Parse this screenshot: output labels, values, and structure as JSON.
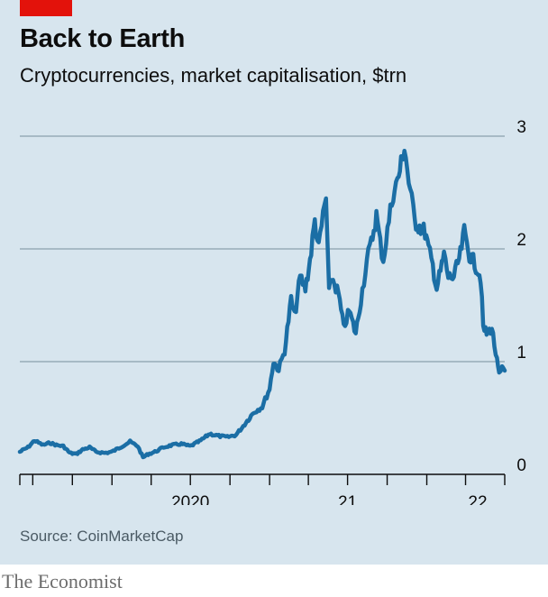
{
  "header": {
    "title": "Back to Earth",
    "subtitle": "Cryptocurrencies, market capitalisation, $trn"
  },
  "footer": {
    "source": "Source: CoinMarketCap",
    "brand": "The Economist"
  },
  "colors": {
    "background": "#d7e5ee",
    "line": "#1b6ea5",
    "accent_tag": "#e3120b",
    "grid": "#8aa0ad"
  },
  "chart_data": {
    "type": "line",
    "title": "Back to Earth",
    "subtitle": "Cryptocurrencies, market capitalisation, $trn",
    "xlabel": "",
    "ylabel": "",
    "xlim": [
      "2019-06-01",
      "2022-07-01"
    ],
    "ylim": [
      0,
      3
    ],
    "y_ticks": [
      0,
      1,
      2,
      3
    ],
    "y_tick_labels": [
      "0",
      "1",
      "2",
      "3"
    ],
    "x_tick_labels": [
      {
        "label": "2020",
        "date": "2020-01-01"
      },
      {
        "label": "21",
        "date": "2021-01-01"
      },
      {
        "label": "22",
        "date": "2022-01-01"
      }
    ],
    "grid": true,
    "y_axis_position": "right",
    "series": [
      {
        "values": [
          [
            "2019-06-01",
            0.2
          ],
          [
            "2019-06-20",
            0.24
          ],
          [
            "2019-07-05",
            0.3
          ],
          [
            "2019-07-15",
            0.28
          ],
          [
            "2019-07-25",
            0.26
          ],
          [
            "2019-08-10",
            0.28
          ],
          [
            "2019-08-25",
            0.26
          ],
          [
            "2019-09-10",
            0.25
          ],
          [
            "2019-09-25",
            0.19
          ],
          [
            "2019-10-10",
            0.18
          ],
          [
            "2019-10-25",
            0.22
          ],
          [
            "2019-11-10",
            0.24
          ],
          [
            "2019-11-25",
            0.2
          ],
          [
            "2019-12-15",
            0.19
          ],
          [
            "2020-01-01",
            0.2
          ],
          [
            "2020-01-20",
            0.24
          ],
          [
            "2020-02-12",
            0.29
          ],
          [
            "2020-03-01",
            0.25
          ],
          [
            "2020-03-13",
            0.15
          ],
          [
            "2020-03-25",
            0.18
          ],
          [
            "2020-04-10",
            0.2
          ],
          [
            "2020-04-30",
            0.24
          ],
          [
            "2020-05-20",
            0.26
          ],
          [
            "2020-06-10",
            0.27
          ],
          [
            "2020-07-01",
            0.25
          ],
          [
            "2020-07-25",
            0.3
          ],
          [
            "2020-08-15",
            0.36
          ],
          [
            "2020-09-05",
            0.34
          ],
          [
            "2020-09-25",
            0.33
          ],
          [
            "2020-10-15",
            0.35
          ],
          [
            "2020-11-01",
            0.43
          ],
          [
            "2020-11-25",
            0.55
          ],
          [
            "2020-12-15",
            0.6
          ],
          [
            "2021-01-01",
            0.76
          ],
          [
            "2021-01-10",
            1.0
          ],
          [
            "2021-01-22",
            0.93
          ],
          [
            "2021-02-05",
            1.1
          ],
          [
            "2021-02-20",
            1.55
          ],
          [
            "2021-02-28",
            1.4
          ],
          [
            "2021-03-13",
            1.75
          ],
          [
            "2021-03-25",
            1.65
          ],
          [
            "2021-04-05",
            1.9
          ],
          [
            "2021-04-16",
            2.25
          ],
          [
            "2021-04-25",
            2.0
          ],
          [
            "2021-05-05",
            2.3
          ],
          [
            "2021-05-12",
            2.45
          ],
          [
            "2021-05-19",
            1.6
          ],
          [
            "2021-05-25",
            1.75
          ],
          [
            "2021-06-10",
            1.6
          ],
          [
            "2021-06-22",
            1.3
          ],
          [
            "2021-07-05",
            1.45
          ],
          [
            "2021-07-20",
            1.25
          ],
          [
            "2021-08-01",
            1.55
          ],
          [
            "2021-08-15",
            1.9
          ],
          [
            "2021-08-25",
            2.05
          ],
          [
            "2021-09-06",
            2.3
          ],
          [
            "2021-09-15",
            2.05
          ],
          [
            "2021-09-22",
            1.9
          ],
          [
            "2021-10-05",
            2.25
          ],
          [
            "2021-10-15",
            2.5
          ],
          [
            "2021-10-25",
            2.6
          ],
          [
            "2021-11-05",
            2.8
          ],
          [
            "2021-11-10",
            2.92
          ],
          [
            "2021-11-20",
            2.6
          ],
          [
            "2021-12-04",
            2.25
          ],
          [
            "2021-12-15",
            2.2
          ],
          [
            "2021-12-28",
            2.15
          ],
          [
            "2022-01-05",
            2.0
          ],
          [
            "2022-01-15",
            1.85
          ],
          [
            "2022-01-24",
            1.65
          ],
          [
            "2022-02-05",
            1.85
          ],
          [
            "2022-02-10",
            1.95
          ],
          [
            "2022-02-20",
            1.75
          ],
          [
            "2022-03-05",
            1.75
          ],
          [
            "2022-03-20",
            1.95
          ],
          [
            "2022-03-29",
            2.15
          ],
          [
            "2022-04-10",
            1.95
          ],
          [
            "2022-04-25",
            1.85
          ],
          [
            "2022-05-06",
            1.75
          ],
          [
            "2022-05-12",
            1.3
          ],
          [
            "2022-05-20",
            1.25
          ],
          [
            "2022-06-01",
            1.3
          ],
          [
            "2022-06-13",
            1.0
          ],
          [
            "2022-06-18",
            0.88
          ],
          [
            "2022-06-25",
            0.93
          ],
          [
            "2022-07-01",
            0.92
          ]
        ]
      }
    ]
  }
}
